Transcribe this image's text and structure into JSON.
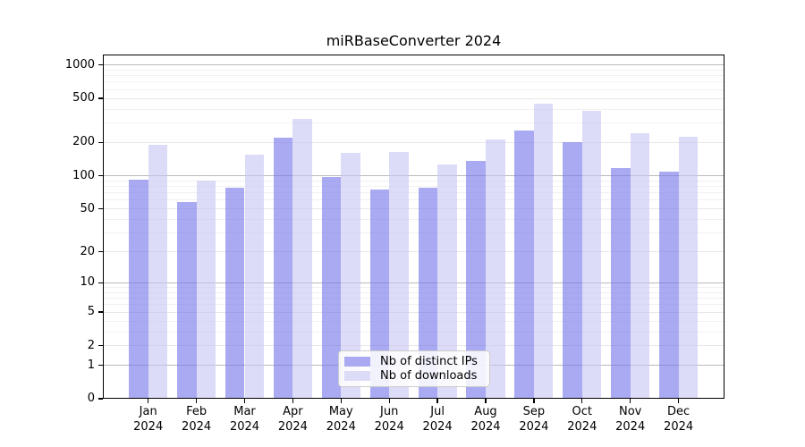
{
  "chart_data": {
    "type": "bar",
    "title": "miRBaseConverter 2024",
    "categories": [
      "Jan",
      "Feb",
      "Mar",
      "Apr",
      "May",
      "Jun",
      "Jul",
      "Aug",
      "Sep",
      "Oct",
      "Nov",
      "Dec"
    ],
    "category_year": "2024",
    "series": [
      {
        "name": "Nb of distinct IPs",
        "color": "#aaaaf2",
        "fill": "rgba(118,118,234,0.62)",
        "values": [
          93,
          58,
          78,
          220,
          98,
          75,
          78,
          136,
          257,
          202,
          117,
          110
        ]
      },
      {
        "name": "Nb of downloads",
        "color": "#dcdcf8",
        "fill": "rgba(198,198,244,0.62)",
        "values": [
          191,
          91,
          155,
          325,
          160,
          163,
          127,
          213,
          449,
          389,
          242,
          227
        ]
      }
    ],
    "yscale": "log1p",
    "yticks": [
      0,
      1,
      2,
      5,
      10,
      20,
      50,
      100,
      200,
      500,
      1000
    ],
    "ylim": [
      0,
      1270
    ],
    "xlabel": "",
    "ylabel": "",
    "grid": true,
    "legend_position": "lower center"
  },
  "colors": {
    "background": "#ffffff",
    "spine": "#000000",
    "text": "#000000",
    "grid_decade": "#bababa",
    "grid_labeled": "#e7e7e7",
    "grid_minor": "#f1f1f1",
    "legend_border": "#cccccc",
    "legend_bg": "rgba(255,255,255,0.85)"
  }
}
